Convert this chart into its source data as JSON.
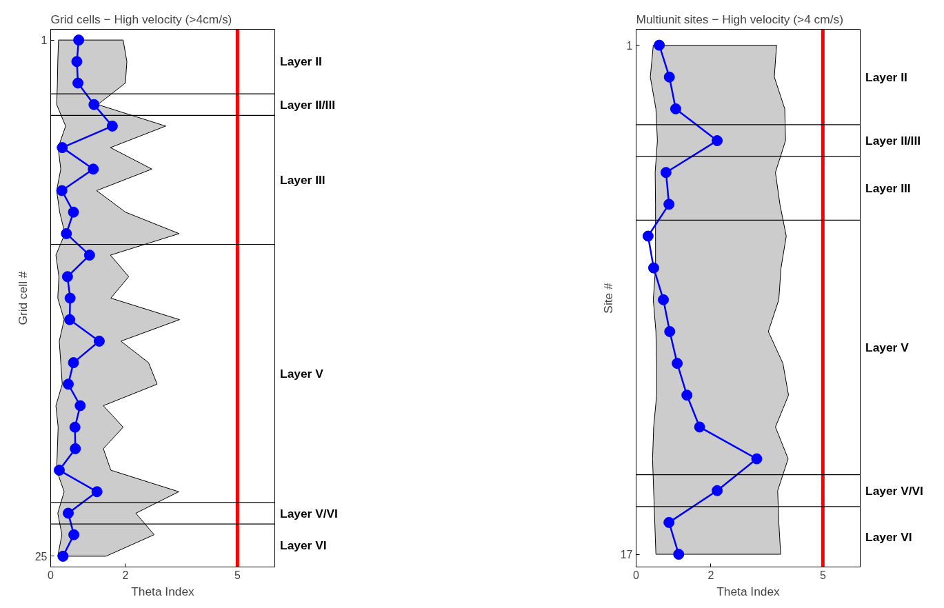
{
  "chart_data": [
    {
      "type": "line",
      "orientation": "horizontal",
      "title": "Grid cells − High velocity (>4cm/s)",
      "xlabel": "Theta Index",
      "ylabel": "Grid cell #",
      "xlim": [
        0,
        6
      ],
      "xticks": [
        0,
        2,
        5
      ],
      "ylim": [
        25.5,
        0.5
      ],
      "yticks": [
        1,
        25
      ],
      "grid": false,
      "marker": "circle",
      "line_style": "solid",
      "series": [
        {
          "color": "#0000ff",
          "x": [
            1,
            2,
            3,
            4,
            5,
            6,
            7,
            8,
            9,
            10,
            11,
            12,
            13,
            14,
            15,
            16,
            17,
            18,
            19,
            20,
            21,
            22,
            23,
            24,
            25
          ],
          "values": [
            0.75,
            0.7,
            0.73,
            1.16,
            1.65,
            0.31,
            1.14,
            0.3,
            0.61,
            0.42,
            1.04,
            0.45,
            0.52,
            0.51,
            1.3,
            0.61,
            0.47,
            0.79,
            0.65,
            0.66,
            0.23,
            1.24,
            0.47,
            0.62,
            0.33
          ],
          "lower": [
            0.21,
            0.19,
            0.18,
            0.16,
            0.4,
            0.2,
            0.27,
            0.16,
            0.24,
            0.38,
            0.14,
            0.22,
            0.19,
            0.36,
            0.23,
            0.27,
            0.31,
            0.14,
            0.2,
            0.18,
            0.16,
            0.36,
            0.19,
            0.3,
            0.19
          ],
          "upper": [
            1.94,
            2.04,
            2.0,
            1.26,
            3.08,
            1.6,
            2.71,
            1.23,
            2.0,
            3.44,
            1.6,
            2.09,
            1.61,
            3.45,
            1.88,
            2.62,
            2.85,
            1.41,
            1.94,
            1.41,
            1.61,
            3.43,
            2.28,
            2.77,
            1.48
          ]
        }
      ],
      "ref_lines": [
        {
          "axis": "x",
          "value": 5,
          "color": "#ff0000"
        },
        {
          "axis": "y",
          "value": 3.5,
          "color": "#000000"
        },
        {
          "axis": "y",
          "value": 4.5,
          "color": "#000000"
        },
        {
          "axis": "y",
          "value": 10.5,
          "color": "#000000"
        },
        {
          "axis": "y",
          "value": 22.5,
          "color": "#000000"
        },
        {
          "axis": "y",
          "value": 23.5,
          "color": "#000000"
        }
      ],
      "annotations": [
        "Layer II",
        "Layer II/III",
        "Layer III",
        "Layer V",
        "Layer V/VI",
        "Layer VI"
      ]
    },
    {
      "type": "line",
      "orientation": "horizontal",
      "title": "Multiunit sites − High velocity (>4 cm/s)",
      "xlabel": "Theta Index",
      "ylabel": "Site #",
      "xlim": [
        0,
        6
      ],
      "xticks": [
        0,
        2,
        5
      ],
      "ylim": [
        17.4,
        0.5
      ],
      "yticks": [
        1,
        17
      ],
      "grid": false,
      "marker": "circle",
      "line_style": "solid",
      "series": [
        {
          "color": "#0000ff",
          "x": [
            1,
            2,
            3,
            4,
            5,
            6,
            7,
            8,
            9,
            10,
            11,
            12,
            13,
            14,
            15,
            16,
            17
          ],
          "values": [
            0.62,
            0.89,
            1.06,
            2.17,
            0.8,
            0.88,
            0.32,
            0.47,
            0.73,
            0.9,
            1.1,
            1.36,
            1.7,
            3.23,
            2.17,
            0.88,
            1.14
          ],
          "lower": [
            0.46,
            0.38,
            0.53,
            0.57,
            0.51,
            0.52,
            0.52,
            0.52,
            0.46,
            0.53,
            0.55,
            0.55,
            0.47,
            0.44,
            0.47,
            0.5,
            0.53
          ],
          "upper": [
            3.76,
            3.7,
            3.98,
            4.0,
            3.73,
            3.85,
            4.02,
            3.88,
            3.82,
            3.54,
            3.93,
            4.08,
            3.73,
            4.07,
            3.79,
            3.82,
            3.87
          ]
        }
      ],
      "ref_lines": [
        {
          "axis": "x",
          "value": 5,
          "color": "#ff0000"
        },
        {
          "axis": "y",
          "value": 3.5,
          "color": "#000000"
        },
        {
          "axis": "y",
          "value": 4.5,
          "color": "#000000"
        },
        {
          "axis": "y",
          "value": 6.5,
          "color": "#000000"
        },
        {
          "axis": "y",
          "value": 14.5,
          "color": "#000000"
        },
        {
          "axis": "y",
          "value": 15.5,
          "color": "#000000"
        }
      ],
      "annotations": [
        "Layer II",
        "Layer II/III",
        "Layer III",
        "Layer V",
        "Layer V/VI",
        "Layer VI"
      ]
    }
  ]
}
